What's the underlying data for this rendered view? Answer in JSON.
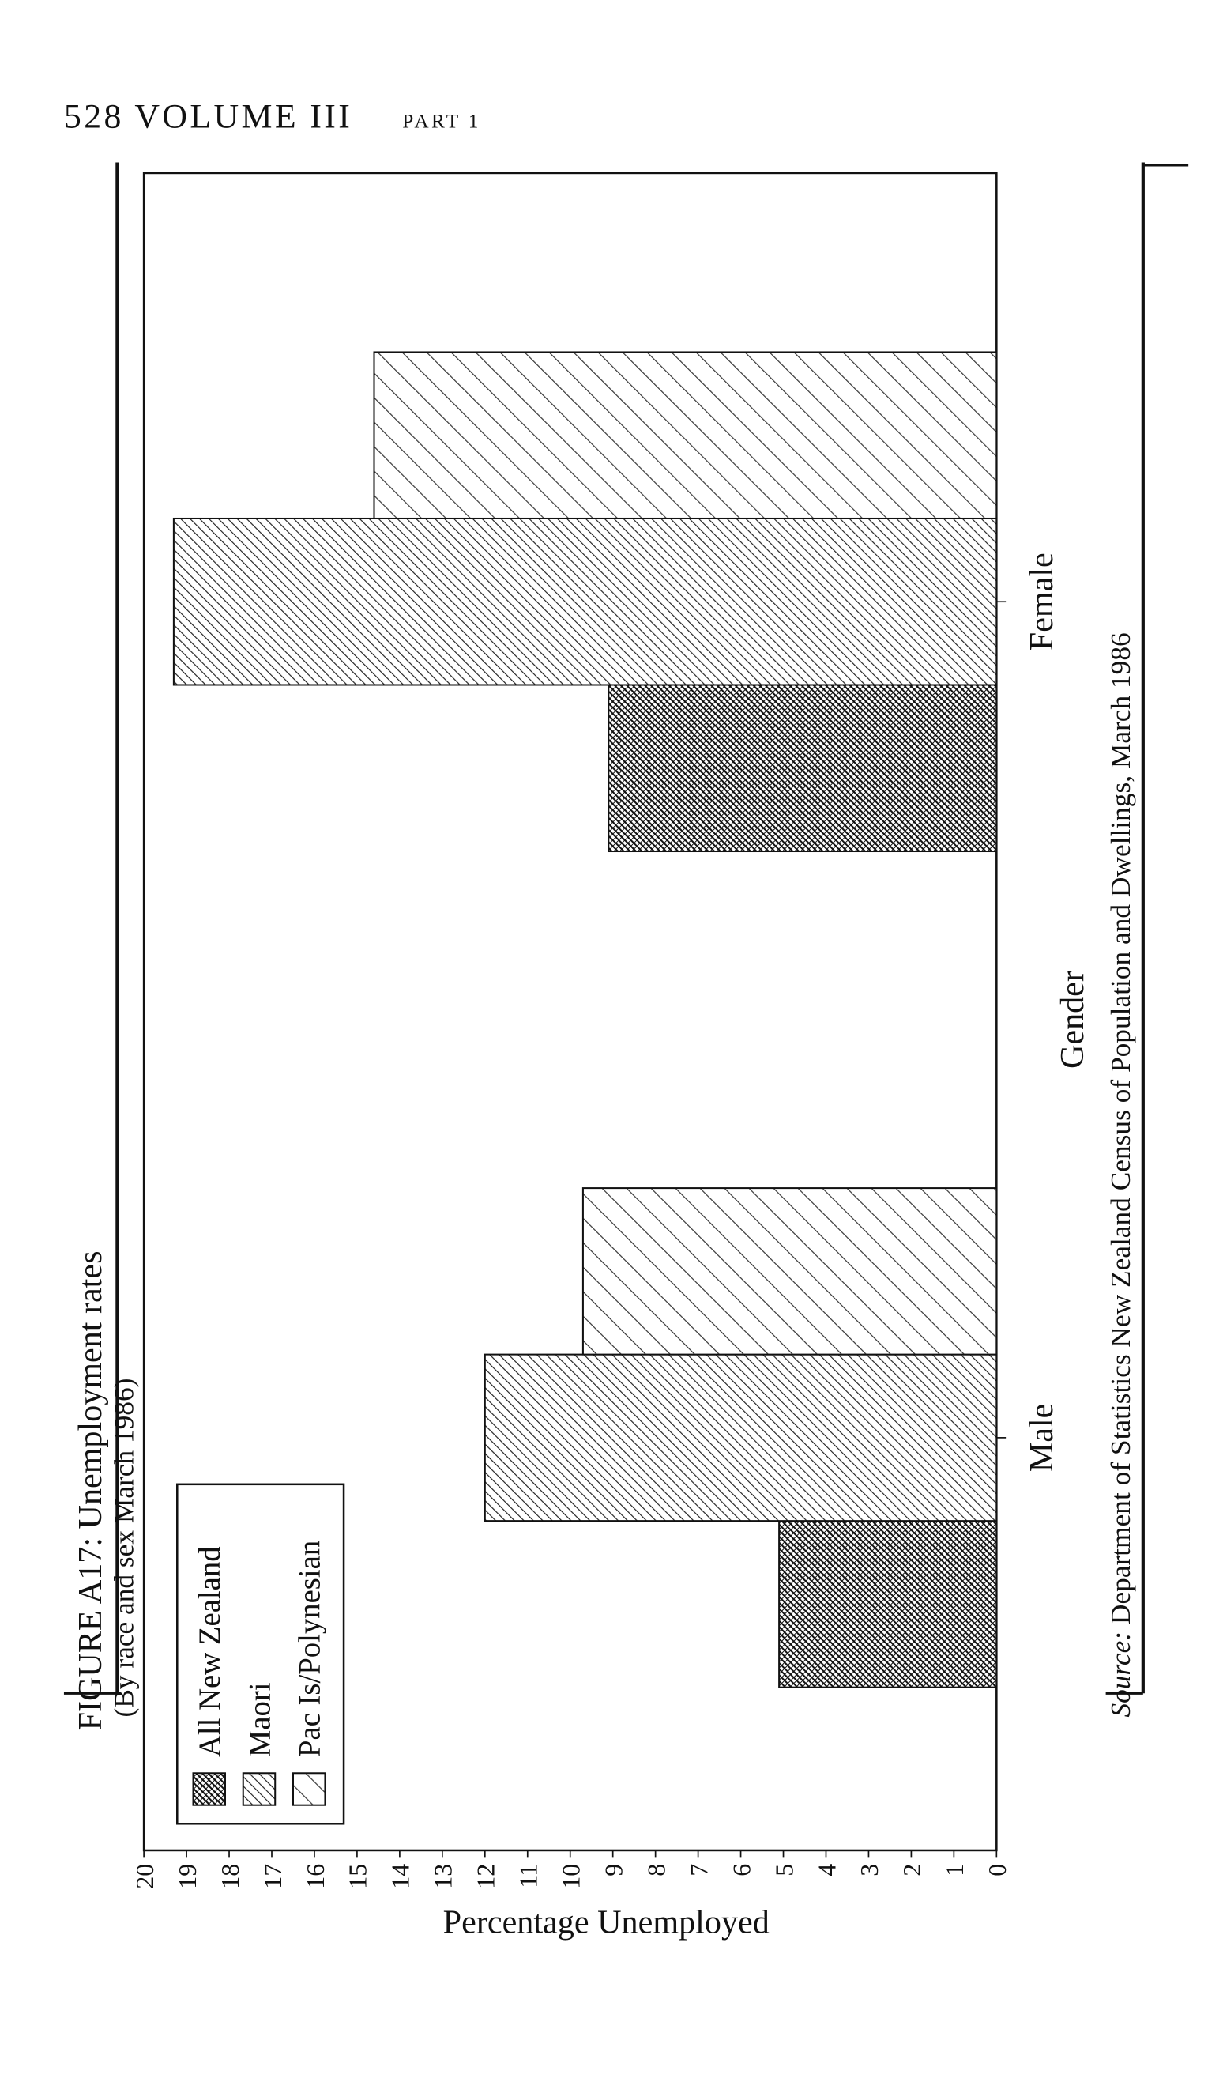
{
  "page": {
    "header": "528 VOLUME III",
    "header_part": "PART 1"
  },
  "chart_data": {
    "type": "bar",
    "orientation": "horizontal",
    "title": "FIGURE A17: Unemployment rates",
    "subtitle": "(By race and sex March 1986)",
    "x_label": "Gender",
    "y_label": "Percentage Unemployed",
    "categories": [
      "Male",
      "Female"
    ],
    "series": [
      {
        "name": "All New Zealand",
        "color": "#111111",
        "values": [
          5.1,
          9.1
        ]
      },
      {
        "name": "Maori",
        "color": "#222222",
        "values": [
          12.0,
          19.3
        ]
      },
      {
        "name": "Pac Is/Polynesian",
        "color": "#333333",
        "values": [
          9.7,
          14.6
        ]
      }
    ],
    "ylim": [
      0,
      20
    ],
    "yticks": [
      0,
      1,
      2,
      3,
      4,
      5,
      6,
      7,
      8,
      9,
      10,
      11,
      12,
      13,
      14,
      15,
      16,
      17,
      18,
      19,
      20
    ],
    "legend": "upper-left",
    "source_label": "Source:",
    "source": "Department of Statistics New Zealand Census of Population and Dwellings, March 1986"
  }
}
